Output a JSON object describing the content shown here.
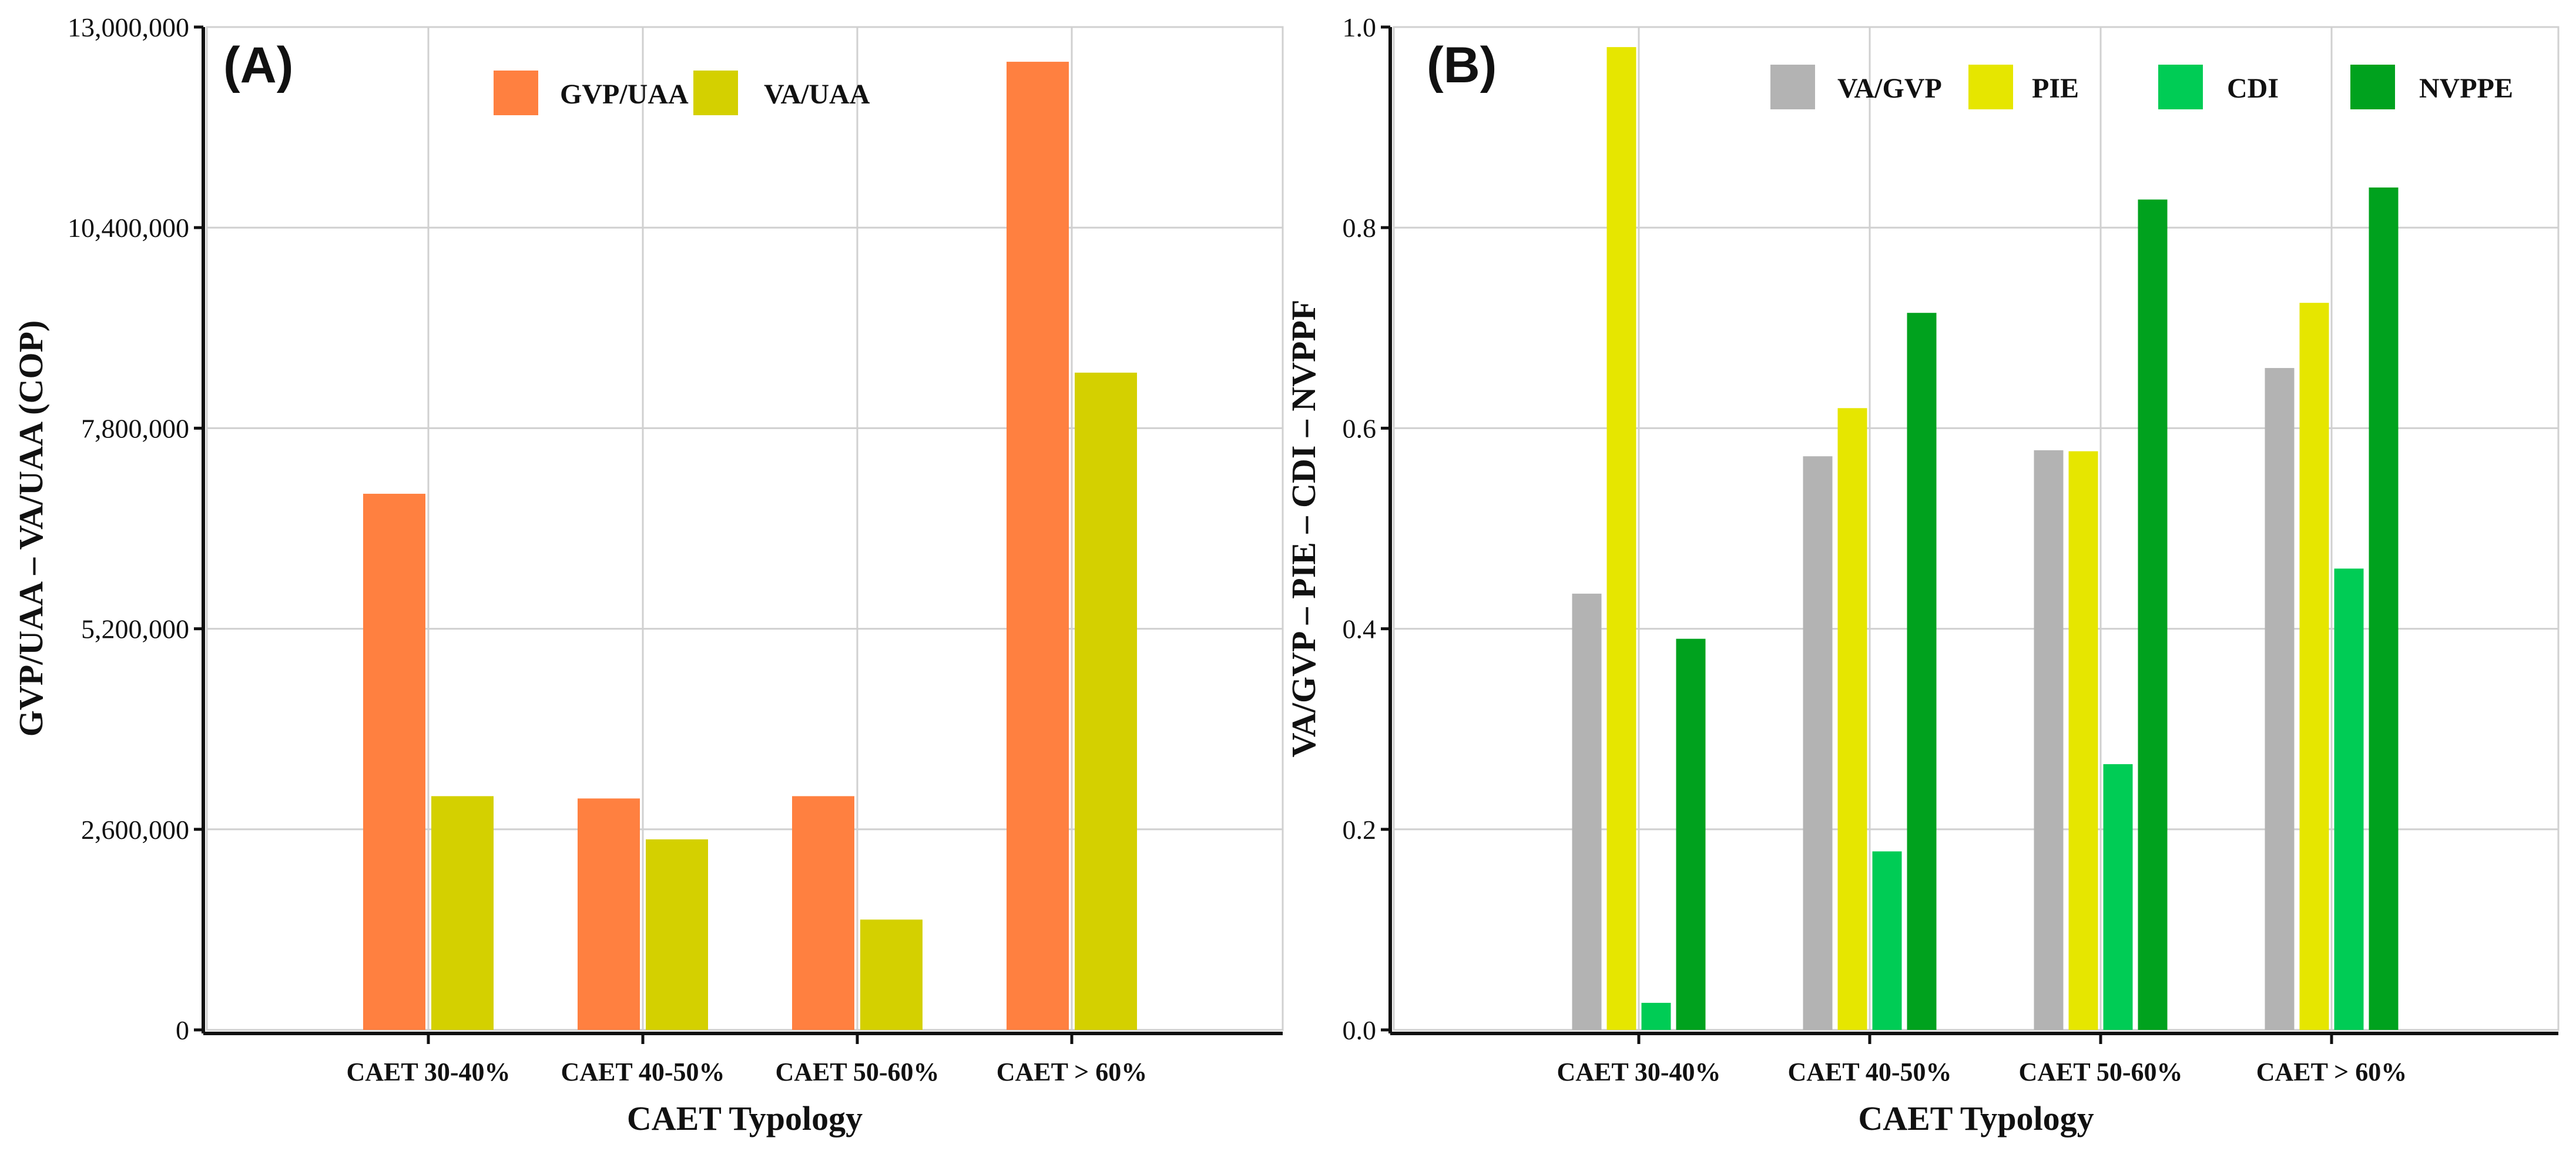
{
  "chart_data": [
    {
      "panel": "(A)",
      "type": "bar",
      "xlabel": "CAET Typology",
      "ylabel": "GVP/UAA – VA/UAA (COP)",
      "categories": [
        "CAET 30-40%",
        "CAET 40-50%",
        "CAET 50-60%",
        "CAET > 60%"
      ],
      "ylim": [
        0,
        13000000
      ],
      "yticks": [
        0,
        2600000,
        5200000,
        7800000,
        10400000,
        13000000
      ],
      "ytick_labels": [
        "0",
        "2,600,000",
        "5,200,000",
        "7,800,000",
        "10,400,000",
        "13,000,000"
      ],
      "grid": true,
      "legend": "top-center",
      "series": [
        {
          "name": "GVP/UAA",
          "color": "#FF8040",
          "values": [
            6950000,
            3000000,
            3030000,
            12550000
          ]
        },
        {
          "name": "VA/UAA",
          "color": "#D4D000",
          "values": [
            3030000,
            2470000,
            1430000,
            8520000
          ]
        }
      ]
    },
    {
      "panel": "(B)",
      "type": "bar",
      "xlabel": "CAET Typology",
      "ylabel": "VA/GVP – PIE – CDI – NVPPF",
      "categories": [
        "CAET 30-40%",
        "CAET 40-50%",
        "CAET 50-60%",
        "CAET > 60%"
      ],
      "ylim": [
        0,
        1.0
      ],
      "yticks": [
        0,
        0.2,
        0.4,
        0.6,
        0.8,
        1.0
      ],
      "ytick_labels": [
        "0.0",
        "0.2",
        "0.4",
        "0.6",
        "0.8",
        "1.0"
      ],
      "grid": true,
      "legend": "top-right",
      "series": [
        {
          "name": "VA/GVP",
          "color": "#B3B3B3",
          "values": [
            0.435,
            0.572,
            0.578,
            0.66
          ]
        },
        {
          "name": "PIE",
          "color": "#E6E600",
          "values": [
            0.98,
            0.62,
            0.577,
            0.725
          ]
        },
        {
          "name": "CDI",
          "color": "#00CC55",
          "values": [
            0.027,
            0.178,
            0.265,
            0.46
          ]
        },
        {
          "name": "NVPPE",
          "color": "#00A21E",
          "values": [
            0.39,
            0.715,
            0.828,
            0.84
          ]
        }
      ]
    }
  ]
}
